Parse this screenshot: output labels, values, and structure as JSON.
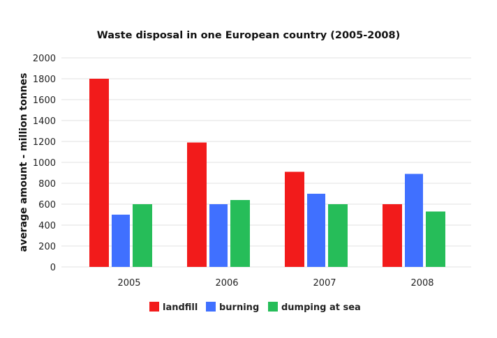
{
  "chart_data": {
    "type": "bar",
    "title": "Waste disposal in one European country (2005-2008)",
    "xlabel": "",
    "ylabel": "average amount - million tonnes",
    "categories": [
      "2005",
      "2006",
      "2007",
      "2008"
    ],
    "ylim": [
      0,
      2000
    ],
    "yticks": [
      0,
      200,
      400,
      600,
      800,
      1000,
      1200,
      1400,
      1600,
      1800,
      2000
    ],
    "grid": true,
    "legend_position": "bottom",
    "series": [
      {
        "name": "landfill",
        "color": "#f21b1b",
        "values": [
          1800,
          1190,
          910,
          600
        ]
      },
      {
        "name": "burning",
        "color": "#4070ff",
        "values": [
          500,
          600,
          700,
          890
        ]
      },
      {
        "name": "dumping at sea",
        "color": "#26bd59",
        "values": [
          600,
          640,
          600,
          530
        ]
      }
    ]
  }
}
